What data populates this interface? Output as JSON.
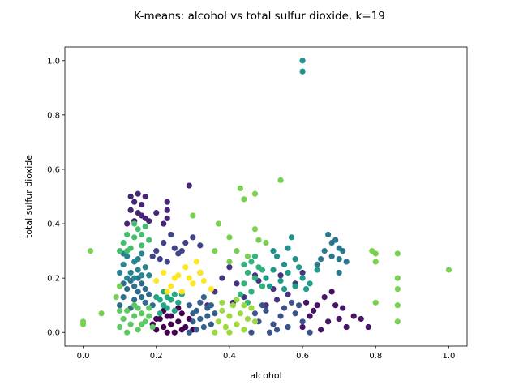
{
  "chart_data": {
    "type": "scatter",
    "title": "K-means: alcohol vs total sulfur dioxide, k=19",
    "xlabel": "alcohol",
    "ylabel": "total sulfur dioxide",
    "xlim": [
      -0.05,
      1.05
    ],
    "ylim": [
      -0.05,
      1.05
    ],
    "xticks": [
      "0.0",
      "0.2",
      "0.4",
      "0.6",
      "0.8",
      "1.0"
    ],
    "yticks": [
      "0.0",
      "0.2",
      "0.4",
      "0.6",
      "0.8",
      "1.0"
    ],
    "grid": false,
    "legend": "none",
    "k": 19,
    "colors": [
      "#440154",
      "#471365",
      "#482475",
      "#463480",
      "#414487",
      "#3b528b",
      "#355f8d",
      "#2f6c8e",
      "#2a788e",
      "#25848e",
      "#21918c",
      "#1e9c89",
      "#22a884",
      "#2fb47c",
      "#44bf70",
      "#5ec962",
      "#7ad151",
      "#9bd93c",
      "#fde725"
    ],
    "clusters": [
      {
        "color_index": 0,
        "points": [
          [
            0.19,
            0.03
          ],
          [
            0.2,
            0.01
          ],
          [
            0.21,
            0.05
          ],
          [
            0.22,
            0.02
          ],
          [
            0.23,
            0.06
          ],
          [
            0.24,
            0.03
          ],
          [
            0.25,
            0.0
          ],
          [
            0.26,
            0.04
          ],
          [
            0.27,
            0.07
          ],
          [
            0.28,
            0.02
          ],
          [
            0.29,
            0.05
          ],
          [
            0.3,
            0.01
          ],
          [
            0.22,
            0.08
          ],
          [
            0.26,
            0.09
          ],
          [
            0.24,
            0.06
          ],
          [
            0.2,
            0.05
          ],
          [
            0.27,
            0.01
          ],
          [
            0.23,
            0.0
          ]
        ]
      },
      {
        "color_index": 1,
        "points": [
          [
            0.6,
            0.02
          ],
          [
            0.62,
            0.06
          ],
          [
            0.64,
            0.1
          ],
          [
            0.66,
            0.13
          ],
          [
            0.68,
            0.15
          ],
          [
            0.7,
            0.05
          ],
          [
            0.72,
            0.02
          ],
          [
            0.74,
            0.06
          ],
          [
            0.76,
            0.05
          ],
          [
            0.78,
            0.02
          ],
          [
            0.65,
            0.01
          ],
          [
            0.63,
            0.08
          ],
          [
            0.67,
            0.04
          ],
          [
            0.69,
            0.1
          ],
          [
            0.61,
            0.11
          ],
          [
            0.71,
            0.09
          ]
        ]
      },
      {
        "color_index": 2,
        "points": [
          [
            0.12,
            0.4
          ],
          [
            0.13,
            0.45
          ],
          [
            0.13,
            0.5
          ],
          [
            0.14,
            0.48
          ],
          [
            0.15,
            0.51
          ],
          [
            0.16,
            0.47
          ],
          [
            0.17,
            0.5
          ],
          [
            0.17,
            0.42
          ],
          [
            0.16,
            0.43
          ],
          [
            0.18,
            0.41
          ],
          [
            0.2,
            0.44
          ],
          [
            0.23,
            0.48
          ],
          [
            0.23,
            0.45
          ],
          [
            0.23,
            0.42
          ],
          [
            0.29,
            0.54
          ],
          [
            0.15,
            0.44
          ],
          [
            0.14,
            0.41
          ],
          [
            0.22,
            0.4
          ]
        ]
      },
      {
        "color_index": 3,
        "points": [
          [
            0.36,
            0.15
          ],
          [
            0.38,
            0.2
          ],
          [
            0.4,
            0.24
          ],
          [
            0.42,
            0.18
          ],
          [
            0.44,
            0.13
          ],
          [
            0.46,
            0.15
          ],
          [
            0.48,
            0.19
          ],
          [
            0.5,
            0.1
          ],
          [
            0.52,
            0.16
          ],
          [
            0.54,
            0.21
          ],
          [
            0.56,
            0.14
          ],
          [
            0.58,
            0.18
          ],
          [
            0.6,
            0.22
          ],
          [
            0.34,
            0.1
          ],
          [
            0.32,
            0.22
          ],
          [
            0.41,
            0.11
          ],
          [
            0.47,
            0.21
          ],
          [
            0.53,
            0.12
          ]
        ]
      },
      {
        "color_index": 4,
        "points": [
          [
            0.2,
            0.3
          ],
          [
            0.22,
            0.33
          ],
          [
            0.24,
            0.36
          ],
          [
            0.26,
            0.29
          ],
          [
            0.28,
            0.33
          ],
          [
            0.3,
            0.35
          ],
          [
            0.32,
            0.32
          ],
          [
            0.25,
            0.31
          ],
          [
            0.21,
            0.27
          ],
          [
            0.23,
            0.26
          ],
          [
            0.27,
            0.3
          ],
          [
            0.19,
            0.28
          ]
        ]
      },
      {
        "color_index": 5,
        "points": [
          [
            0.46,
            0.0
          ],
          [
            0.48,
            0.04
          ],
          [
            0.5,
            0.08
          ],
          [
            0.52,
            0.03
          ],
          [
            0.54,
            0.06
          ],
          [
            0.56,
            0.02
          ],
          [
            0.58,
            0.07
          ],
          [
            0.6,
            0.04
          ],
          [
            0.62,
            0.0
          ],
          [
            0.49,
            0.1
          ],
          [
            0.51,
            0.0
          ],
          [
            0.55,
            0.09
          ],
          [
            0.57,
            0.11
          ],
          [
            0.53,
            0.01
          ],
          [
            0.59,
            0.1
          ],
          [
            0.47,
            0.07
          ]
        ]
      },
      {
        "color_index": 6,
        "points": [
          [
            0.29,
            0.0
          ],
          [
            0.3,
            0.04
          ],
          [
            0.31,
            0.08
          ],
          [
            0.32,
            0.11
          ],
          [
            0.33,
            0.02
          ],
          [
            0.34,
            0.06
          ],
          [
            0.35,
            0.1
          ],
          [
            0.3,
            0.07
          ],
          [
            0.31,
            0.01
          ],
          [
            0.32,
            0.05
          ],
          [
            0.34,
            0.09
          ],
          [
            0.33,
            0.13
          ],
          [
            0.35,
            0.03
          ],
          [
            0.29,
            0.1
          ],
          [
            0.36,
            0.07
          ]
        ]
      },
      {
        "color_index": 7,
        "points": [
          [
            0.1,
            0.1
          ],
          [
            0.11,
            0.13
          ],
          [
            0.12,
            0.16
          ],
          [
            0.13,
            0.19
          ],
          [
            0.14,
            0.12
          ],
          [
            0.15,
            0.15
          ],
          [
            0.16,
            0.18
          ],
          [
            0.17,
            0.11
          ],
          [
            0.18,
            0.14
          ],
          [
            0.19,
            0.1
          ],
          [
            0.13,
            0.09
          ],
          [
            0.15,
            0.2
          ],
          [
            0.11,
            0.18
          ],
          [
            0.17,
            0.16
          ],
          [
            0.14,
            0.17
          ],
          [
            0.16,
            0.13
          ]
        ]
      },
      {
        "color_index": 8,
        "points": [
          [
            0.64,
            0.25
          ],
          [
            0.66,
            0.3
          ],
          [
            0.67,
            0.36
          ],
          [
            0.68,
            0.33
          ],
          [
            0.69,
            0.34
          ],
          [
            0.7,
            0.31
          ],
          [
            0.71,
            0.3
          ],
          [
            0.7,
            0.27
          ],
          [
            0.72,
            0.26
          ],
          [
            0.7,
            0.22
          ],
          [
            0.68,
            0.28
          ],
          [
            0.65,
            0.27
          ]
        ]
      },
      {
        "color_index": 9,
        "points": [
          [
            0.1,
            0.22
          ],
          [
            0.11,
            0.25
          ],
          [
            0.12,
            0.28
          ],
          [
            0.13,
            0.22
          ],
          [
            0.14,
            0.26
          ],
          [
            0.15,
            0.23
          ],
          [
            0.16,
            0.29
          ],
          [
            0.17,
            0.24
          ],
          [
            0.18,
            0.21
          ],
          [
            0.12,
            0.2
          ],
          [
            0.14,
            0.2
          ],
          [
            0.16,
            0.21
          ],
          [
            0.11,
            0.29
          ],
          [
            0.15,
            0.27
          ]
        ]
      },
      {
        "color_index": 10,
        "points": [
          [
            0.52,
            0.3
          ],
          [
            0.56,
            0.31
          ],
          [
            0.57,
            0.35
          ],
          [
            0.58,
            0.27
          ],
          [
            0.6,
            0.96
          ],
          [
            0.6,
            1.0
          ],
          [
            0.55,
            0.25
          ],
          [
            0.53,
            0.28
          ]
        ]
      },
      {
        "color_index": 11,
        "points": [
          [
            0.5,
            0.2
          ],
          [
            0.52,
            0.23
          ],
          [
            0.54,
            0.19
          ],
          [
            0.56,
            0.22
          ],
          [
            0.58,
            0.17
          ],
          [
            0.6,
            0.2
          ],
          [
            0.62,
            0.18
          ],
          [
            0.64,
            0.23
          ],
          [
            0.55,
            0.16
          ],
          [
            0.59,
            0.24
          ],
          [
            0.61,
            0.16
          ],
          [
            0.51,
            0.17
          ]
        ]
      },
      {
        "color_index": 12,
        "points": [
          [
            0.21,
            0.07
          ],
          [
            0.21,
            0.12
          ],
          [
            0.22,
            0.15
          ],
          [
            0.23,
            0.09
          ],
          [
            0.24,
            0.12
          ],
          [
            0.25,
            0.08
          ],
          [
            0.26,
            0.11
          ],
          [
            0.27,
            0.14
          ],
          [
            0.22,
            0.1
          ],
          [
            0.23,
            0.13
          ],
          [
            0.25,
            0.14
          ],
          [
            0.2,
            0.13
          ]
        ]
      },
      {
        "color_index": 13,
        "points": [
          [
            0.43,
            0.14
          ],
          [
            0.44,
            0.18
          ],
          [
            0.45,
            0.22
          ],
          [
            0.46,
            0.26
          ],
          [
            0.47,
            0.2
          ],
          [
            0.48,
            0.24
          ],
          [
            0.49,
            0.17
          ],
          [
            0.45,
            0.11
          ],
          [
            0.47,
            0.28
          ],
          [
            0.49,
            0.23
          ],
          [
            0.46,
            0.15
          ],
          [
            0.44,
            0.25
          ]
        ]
      },
      {
        "color_index": 14,
        "points": [
          [
            0.1,
            0.3
          ],
          [
            0.11,
            0.33
          ],
          [
            0.12,
            0.36
          ],
          [
            0.13,
            0.31
          ],
          [
            0.14,
            0.35
          ],
          [
            0.15,
            0.38
          ],
          [
            0.16,
            0.32
          ],
          [
            0.17,
            0.39
          ],
          [
            0.18,
            0.34
          ],
          [
            0.12,
            0.3
          ],
          [
            0.14,
            0.4
          ],
          [
            0.16,
            0.36
          ]
        ]
      },
      {
        "color_index": 15,
        "points": [
          [
            0.1,
            0.02
          ],
          [
            0.11,
            0.05
          ],
          [
            0.12,
            0.08
          ],
          [
            0.13,
            0.03
          ],
          [
            0.14,
            0.06
          ],
          [
            0.15,
            0.01
          ],
          [
            0.16,
            0.07
          ],
          [
            0.17,
            0.04
          ],
          [
            0.18,
            0.09
          ],
          [
            0.19,
            0.02
          ],
          [
            0.12,
            0.0
          ],
          [
            0.14,
            0.1
          ],
          [
            0.16,
            0.03
          ],
          [
            0.18,
            0.06
          ],
          [
            0.1,
            0.08
          ],
          [
            0.15,
            0.09
          ]
        ]
      },
      {
        "color_index": 16,
        "points": [
          [
            0.0,
            0.03
          ],
          [
            0.0,
            0.04
          ],
          [
            0.02,
            0.3
          ],
          [
            0.05,
            0.07
          ],
          [
            0.09,
            0.13
          ],
          [
            0.1,
            0.17
          ],
          [
            0.3,
            0.43
          ],
          [
            0.37,
            0.4
          ],
          [
            0.43,
            0.53
          ],
          [
            0.44,
            0.49
          ],
          [
            0.47,
            0.51
          ],
          [
            0.54,
            0.56
          ],
          [
            0.47,
            0.38
          ],
          [
            0.4,
            0.26
          ],
          [
            0.45,
            0.28
          ],
          [
            0.48,
            0.34
          ],
          [
            0.5,
            0.33
          ],
          [
            0.8,
            0.29
          ],
          [
            0.8,
            0.26
          ],
          [
            0.79,
            0.3
          ],
          [
            0.8,
            0.11
          ],
          [
            0.86,
            0.29
          ],
          [
            0.86,
            0.2
          ],
          [
            0.86,
            0.16
          ],
          [
            0.86,
            0.1
          ],
          [
            0.86,
            0.04
          ],
          [
            1.0,
            0.23
          ],
          [
            0.36,
            0.3
          ],
          [
            0.4,
            0.35
          ],
          [
            0.42,
            0.3
          ]
        ]
      },
      {
        "color_index": 17,
        "points": [
          [
            0.36,
            0.0
          ],
          [
            0.37,
            0.04
          ],
          [
            0.38,
            0.08
          ],
          [
            0.39,
            0.02
          ],
          [
            0.4,
            0.06
          ],
          [
            0.41,
            0.1
          ],
          [
            0.42,
            0.03
          ],
          [
            0.43,
            0.07
          ],
          [
            0.44,
            0.01
          ],
          [
            0.45,
            0.05
          ],
          [
            0.46,
            0.09
          ],
          [
            0.47,
            0.04
          ],
          [
            0.38,
            0.11
          ],
          [
            0.42,
            0.12
          ],
          [
            0.44,
            0.1
          ],
          [
            0.4,
            0.0
          ]
        ]
      },
      {
        "color_index": 18,
        "points": [
          [
            0.2,
            0.19
          ],
          [
            0.22,
            0.22
          ],
          [
            0.24,
            0.17
          ],
          [
            0.26,
            0.21
          ],
          [
            0.28,
            0.24
          ],
          [
            0.3,
            0.18
          ],
          [
            0.32,
            0.22
          ],
          [
            0.27,
            0.15
          ],
          [
            0.29,
            0.2
          ],
          [
            0.31,
            0.26
          ],
          [
            0.33,
            0.19
          ],
          [
            0.35,
            0.16
          ],
          [
            0.25,
            0.2
          ],
          [
            0.23,
            0.15
          ]
        ]
      }
    ]
  }
}
